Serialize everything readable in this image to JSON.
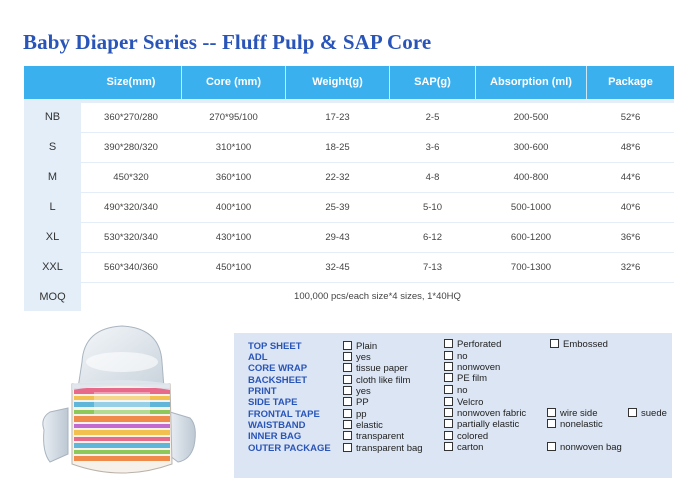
{
  "title": "Baby Diaper Series -- Fluff Pulp & SAP Core",
  "table": {
    "headers": [
      "Size(mm)",
      "Core (mm)",
      "Weight(g)",
      "SAP(g)",
      "Absorption (ml)",
      "Package"
    ],
    "rows": [
      {
        "label": "NB",
        "cells": [
          "360*270/280",
          "270*95/100",
          "17-23",
          "2-5",
          "200-500",
          "52*6"
        ]
      },
      {
        "label": "S",
        "cells": [
          "390*280/320",
          "310*100",
          "18-25",
          "3-6",
          "300-600",
          "48*6"
        ]
      },
      {
        "label": "M",
        "cells": [
          "450*320",
          "360*100",
          "22-32",
          "4-8",
          "400-800",
          "44*6"
        ]
      },
      {
        "label": "L",
        "cells": [
          "490*320/340",
          "400*100",
          "25-39",
          "5-10",
          "500-1000",
          "40*6"
        ]
      },
      {
        "label": "XL",
        "cells": [
          "530*320/340",
          "430*100",
          "29-43",
          "6-12",
          "600-1200",
          "36*6"
        ]
      },
      {
        "label": "XXL",
        "cells": [
          "560*340/360",
          "450*100",
          "32-45",
          "7-13",
          "700-1300",
          "32*6"
        ]
      }
    ],
    "moq": {
      "label": "MOQ",
      "value": "100,000 pcs/each size*4 sizes, 1*40HQ"
    }
  },
  "specs": [
    {
      "label": "TOP SHEET",
      "options": [
        "Plain",
        "Perforated",
        "Embossed"
      ]
    },
    {
      "label": "ADL",
      "options": [
        "yes",
        "no"
      ]
    },
    {
      "label": "CORE WRAP",
      "options": [
        "tissue paper",
        "nonwoven"
      ]
    },
    {
      "label": "BACKSHEET",
      "options": [
        "cloth like film",
        "PE film"
      ]
    },
    {
      "label": "PRINT",
      "options": [
        "yes",
        "no"
      ]
    },
    {
      "label": "SIDE TAPE",
      "options": [
        "PP",
        "Velcro"
      ]
    },
    {
      "label": "FRONTAL TAPE",
      "options": [
        "pp",
        "nonwoven fabric",
        "wire side",
        "suede"
      ]
    },
    {
      "label": "WAISTBAND",
      "options": [
        "elastic",
        "partially elastic",
        "nonelastic"
      ]
    },
    {
      "label": "INNER BAG",
      "options": [
        "transparent",
        "colored"
      ]
    },
    {
      "label": "OUTER PACKAGE",
      "options": [
        "transparent bag",
        "carton",
        "nonwoven bag"
      ]
    }
  ],
  "colors": {
    "title": "#2a55b8",
    "header": "#3bb0ee",
    "table_bg": "#e4eef8",
    "spec_bg": "#dbe5f3",
    "spec_label": "#2a55b8"
  }
}
